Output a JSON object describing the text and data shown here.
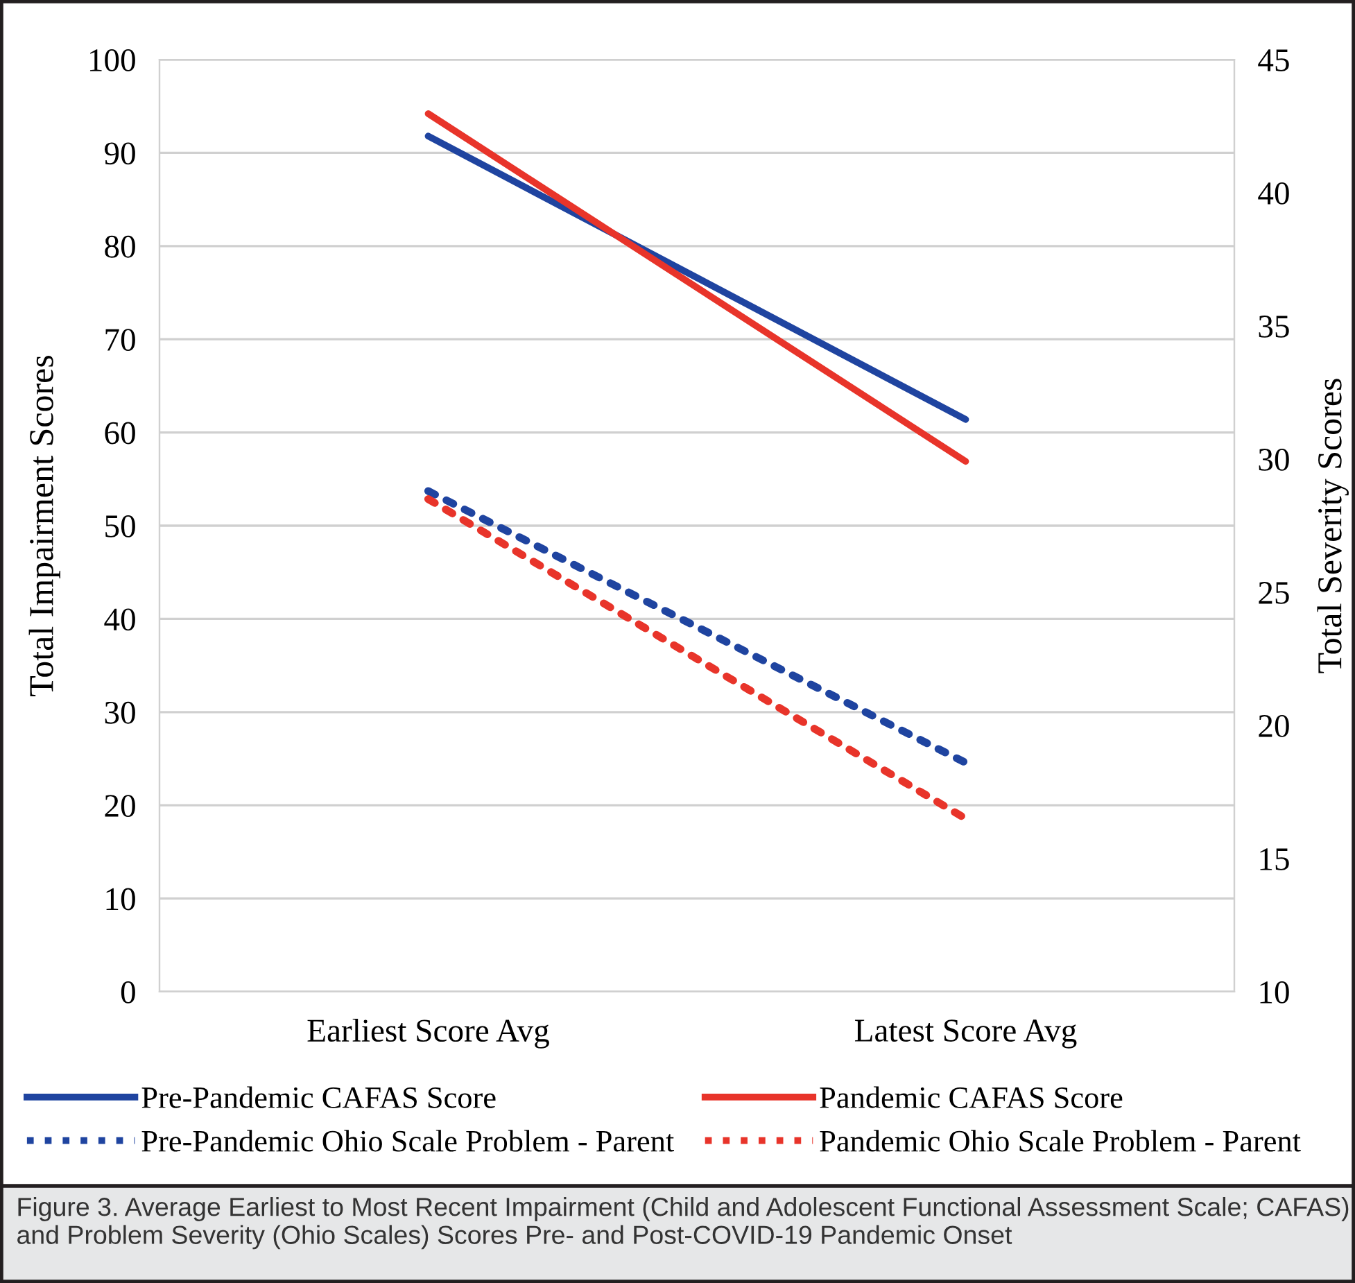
{
  "chart_data": {
    "type": "line",
    "categories": [
      "Earliest Score Avg",
      "Latest Score Avg"
    ],
    "series": [
      {
        "name": "Pre-Pandemic CAFAS Score",
        "color": "#1f44a0",
        "values": [
          91.8,
          61.4
        ],
        "line_style": "solid"
      },
      {
        "name": "Pandemic CAFAS Score",
        "color": "#e8342a",
        "values": [
          94.2,
          56.9
        ],
        "line_style": "solid"
      },
      {
        "name": "Pre-Pandemic Ohio Scale Problem - Parent",
        "color": "#1f44a0",
        "values": [
          28.8,
          18.6
        ],
        "line_style": "dotted",
        "axis": "y2"
      },
      {
        "name": "Pandemic Ohio Scale Problem - Parent",
        "color": "#e8342a",
        "values": [
          28.5,
          16.5
        ],
        "line_style": "dotted",
        "axis": "y2"
      }
    ],
    "ylabel": "Total Impairment Scores",
    "y2label": "Total Severity Scores",
    "ylim": [
      0,
      100
    ],
    "yticks": [
      0,
      10,
      20,
      30,
      40,
      50,
      60,
      70,
      80,
      90,
      100
    ],
    "y2lim": [
      10,
      45
    ],
    "y2ticks": [
      10,
      15,
      20,
      25,
      30,
      35,
      40,
      45
    ],
    "grid": "y",
    "legend": "bottom",
    "marker": "none",
    "annotations": [
      "Figure 3. Average Earliest to Most Recent Impairment (Child and Adolescent Functional Assessment Scale; CAFAS) and Problem Severity (Ohio Scales) Scores Pre- and Post-COVID-19 Pandemic Onset"
    ]
  }
}
